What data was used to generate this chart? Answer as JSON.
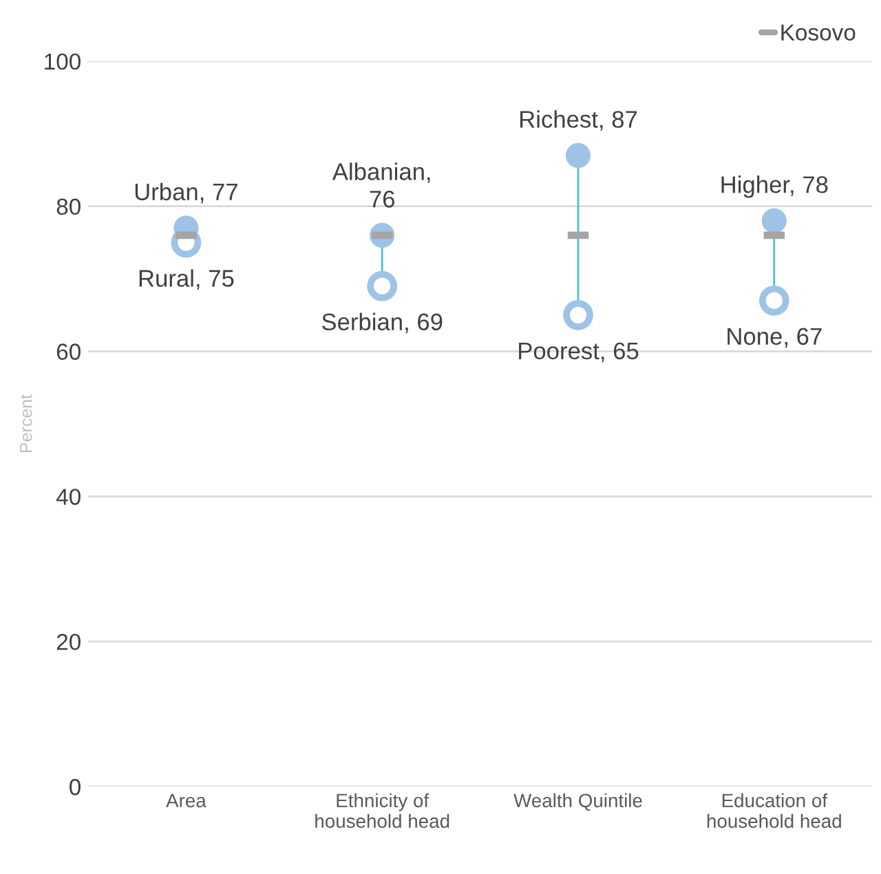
{
  "chart_data": {
    "type": "scatter",
    "ylabel": "Percent",
    "categories": [
      "Area",
      "Ethnicity of\nhousehold head",
      "Wealth Quintile",
      "Education of\nhousehold head"
    ],
    "series": [
      {
        "color": "#9dc3e6",
        "marker": "circle",
        "values": [
          77,
          76,
          87,
          78
        ],
        "value_labels": [
          "Urban, 77",
          "Albanian,\n76",
          "Richest, 87",
          "Higher, 78"
        ]
      },
      {
        "color": "#9dc3e6",
        "marker": "circle",
        "values": [
          75,
          69,
          65,
          67
        ],
        "value_labels": [
          "Rural, 75",
          "Serbian, 69",
          "Poorest, 65",
          "None, 67"
        ]
      },
      {
        "name": "Kosovo",
        "color": "#a5a5a5",
        "marker": "square",
        "values": [
          76,
          76,
          76,
          76
        ]
      }
    ],
    "ylim": [
      0,
      100
    ],
    "yticks": [
      0,
      20,
      40,
      60,
      80,
      100
    ],
    "grid": "y",
    "legend": "top right"
  }
}
